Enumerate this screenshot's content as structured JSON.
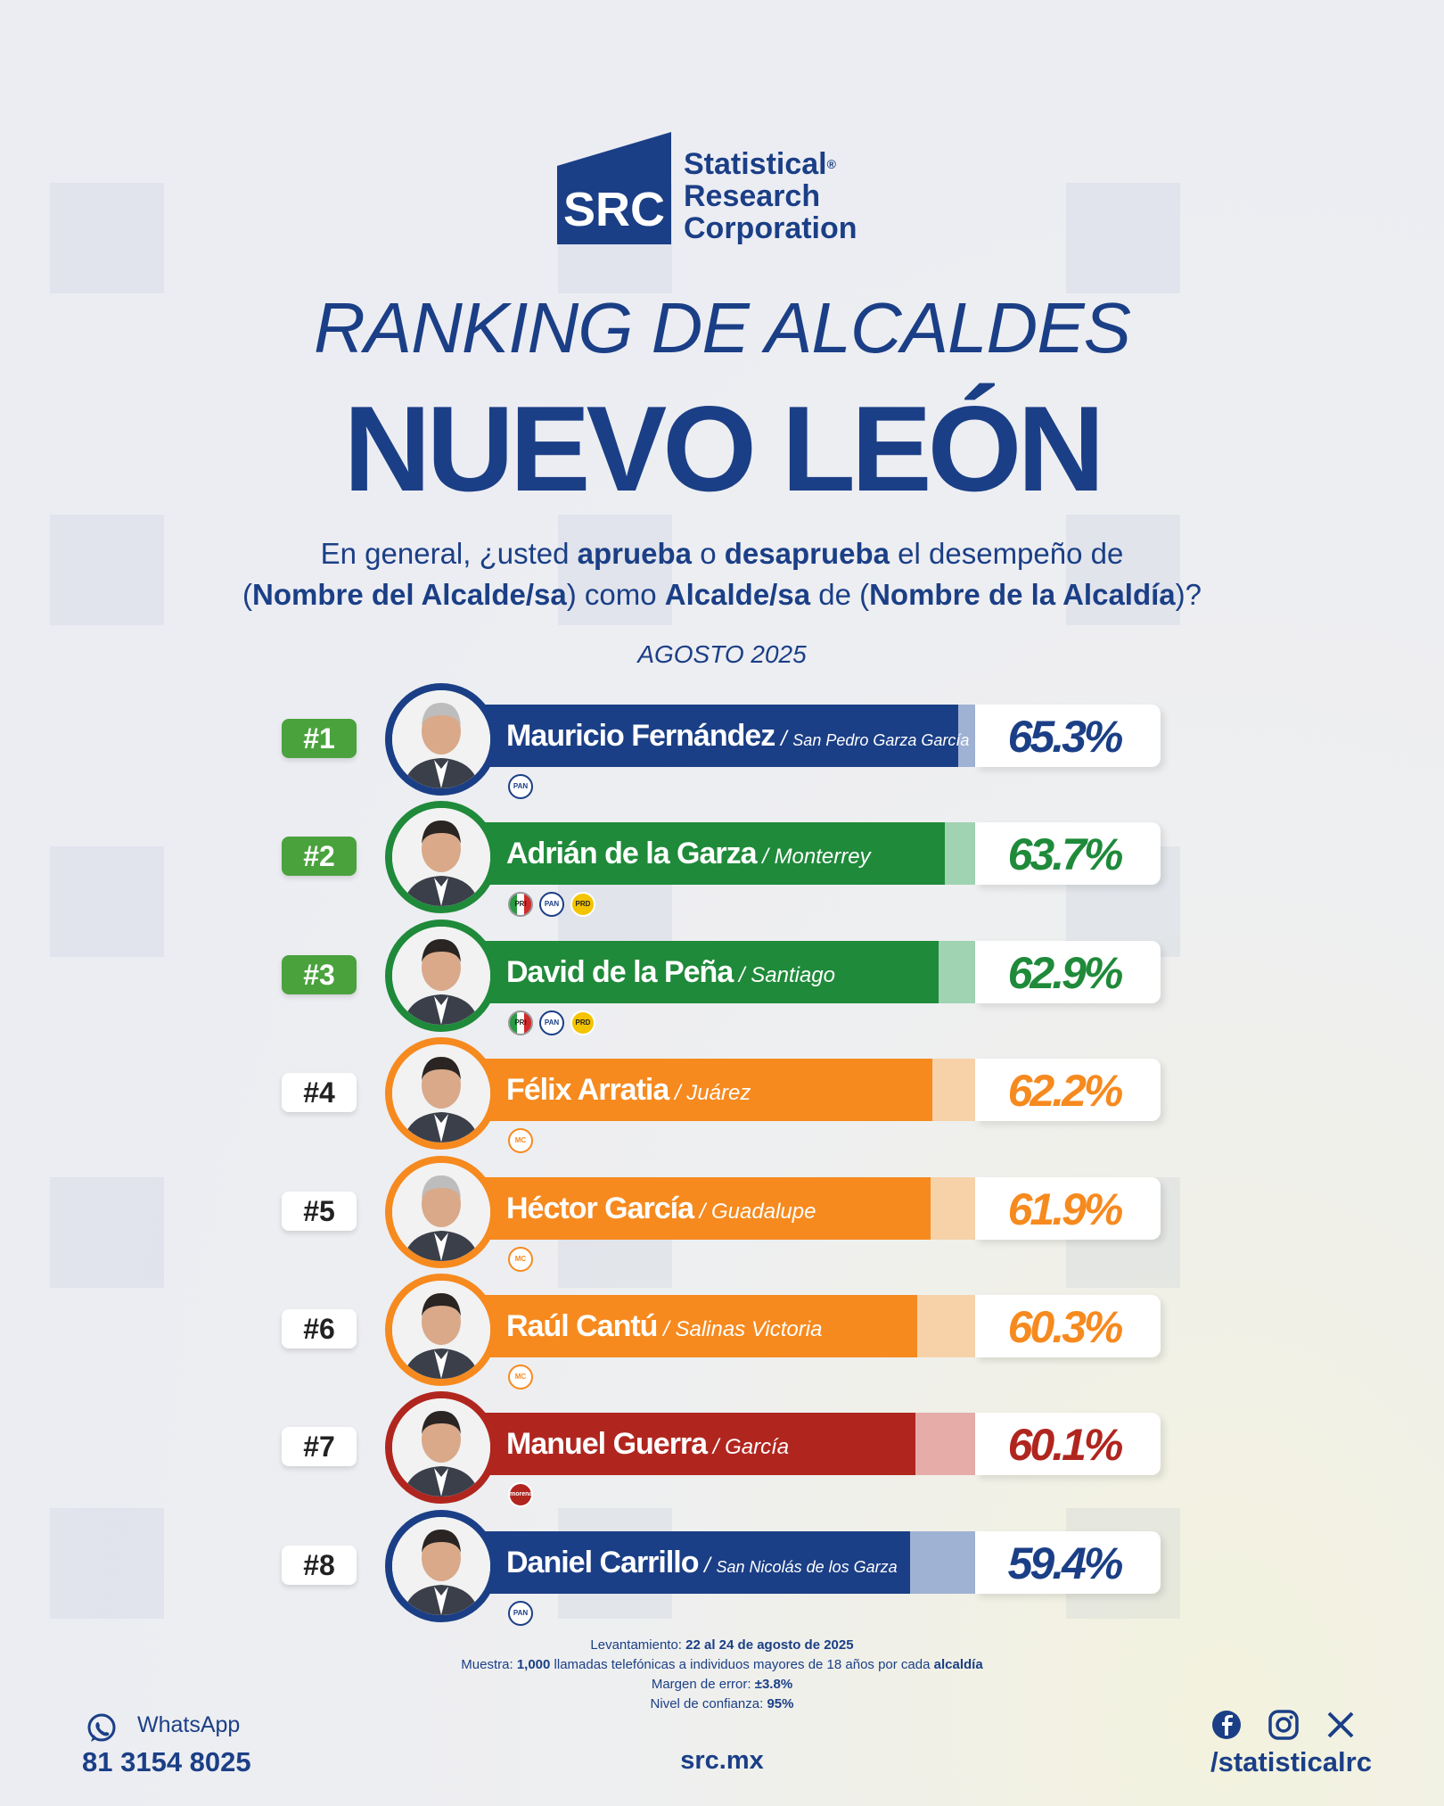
{
  "brand": {
    "logo_text": "SRC",
    "name_line1": "Statistical",
    "name_line2": "Research",
    "name_line3": "Corporation",
    "registered": "®"
  },
  "title_line1": "RANKING DE ALCALDES",
  "title_line2": "NUEVO LEÓN",
  "question": {
    "p1": "En general, ¿usted ",
    "b1": "aprueba",
    "p2": " o ",
    "b2": "desaprueba",
    "p3": " el desempeño de",
    "p4": "(",
    "b3": "Nombre del Alcalde/sa",
    "p5": ") como ",
    "b4": "Alcalde/sa",
    "p6": " de (",
    "b5": "Nombre de la Alcaldía",
    "p7": ")?"
  },
  "date": "AGOSTO 2025",
  "colors": {
    "navy": "#1b3f86",
    "green": "#1f8a3a",
    "orange": "#f68a1f",
    "red": "#b0261f"
  },
  "chart_data": {
    "type": "bar",
    "xlim": [
      0,
      100
    ],
    "categories": [
      "Mauricio Fernández",
      "Adrián de la Garza",
      "David de la Peña",
      "Félix Arratia",
      "Héctor García",
      "Raúl Cantú",
      "Manuel Guerra",
      "Daniel Carrillo"
    ],
    "values": [
      65.3,
      63.7,
      62.9,
      62.2,
      61.9,
      60.3,
      60.1,
      59.4
    ],
    "rows": [
      {
        "rank": "#1",
        "name": "Mauricio Fernández",
        "city": "San Pedro Garza García",
        "value": 65.3,
        "label": "65.3%",
        "color": "#1b3f86",
        "light": "#9fb2d4",
        "parties": [
          "PAN"
        ]
      },
      {
        "rank": "#2",
        "name": "Adrián de la Garza",
        "city": "Monterrey",
        "value": 63.7,
        "label": "63.7%",
        "color": "#1f8a3a",
        "light": "#9fd3b2",
        "parties": [
          "PRI",
          "PAN",
          "PRD"
        ]
      },
      {
        "rank": "#3",
        "name": "David de la Peña",
        "city": "Santiago",
        "value": 62.9,
        "label": "62.9%",
        "color": "#1f8a3a",
        "light": "#9fd3b2",
        "parties": [
          "PRI",
          "PAN",
          "PRD"
        ]
      },
      {
        "rank": "#4",
        "name": "Félix Arratia",
        "city": "Juárez",
        "value": 62.2,
        "label": "62.2%",
        "color": "#f68a1f",
        "light": "#f7d2a9",
        "parties": [
          "MC"
        ]
      },
      {
        "rank": "#5",
        "name": "Héctor García",
        "city": "Guadalupe",
        "value": 61.9,
        "label": "61.9%",
        "color": "#f68a1f",
        "light": "#f7d2a9",
        "parties": [
          "MC"
        ]
      },
      {
        "rank": "#6",
        "name": "Raúl Cantú",
        "city": "Salinas Victoria",
        "value": 60.3,
        "label": "60.3%",
        "color": "#f68a1f",
        "light": "#f7d2a9",
        "parties": [
          "MC"
        ]
      },
      {
        "rank": "#7",
        "name": "Manuel Guerra",
        "city": "García",
        "value": 60.1,
        "label": "60.1%",
        "color": "#b0261f",
        "light": "#e5aca8",
        "parties": [
          "morena"
        ]
      },
      {
        "rank": "#8",
        "name": "Daniel Carrillo",
        "city": "San Nicolás de los Garza",
        "value": 59.4,
        "label": "59.4%",
        "color": "#1b3f86",
        "light": "#9fb2d4",
        "parties": [
          "PAN"
        ]
      }
    ]
  },
  "methodology": {
    "l1_label": "Levantamiento: ",
    "l1_value": "22 al 24 de agosto de 2025",
    "l2_label": "Muestra: ",
    "l2_value": "1,000",
    "l2_mid": " llamadas telefónicas a individuos mayores de 18 años por cada ",
    "l2_end": "alcaldía",
    "l3_label": "Margen de error: ",
    "l3_value": "±3.8%",
    "l4_label": "Nivel de confianza: ",
    "l4_value": "95%"
  },
  "footer": {
    "whatsapp_label": "WhatsApp",
    "whatsapp_number": "81 3154 8025",
    "website": "src.mx",
    "handle": "/statisticalrc"
  }
}
